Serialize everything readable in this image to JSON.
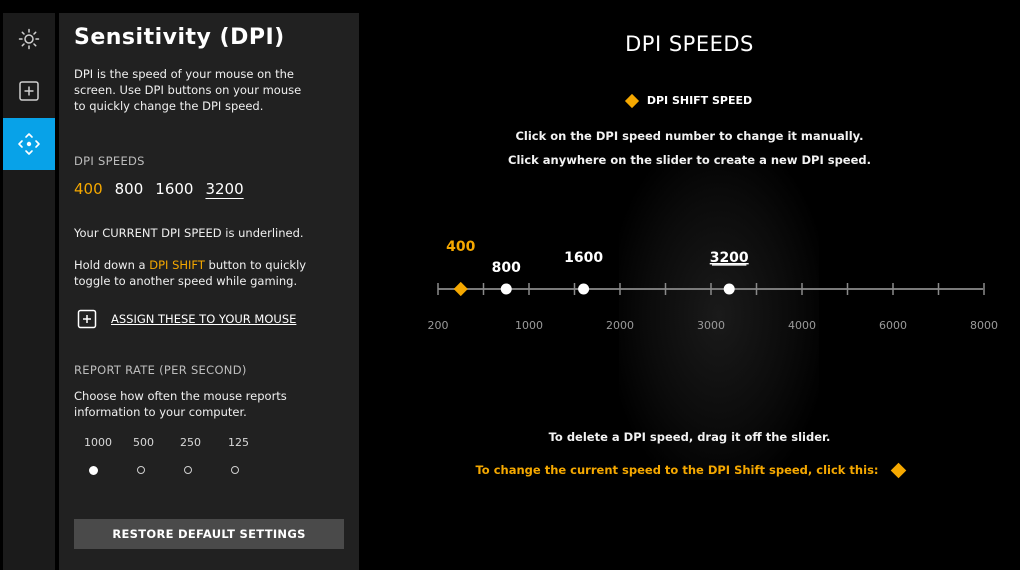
{
  "rail": {
    "items": [
      {
        "icon": "sun-icon"
      },
      {
        "icon": "plus-square-icon"
      },
      {
        "icon": "move-arrows-icon",
        "active": true
      }
    ]
  },
  "panel": {
    "title": "Sensitivity (DPI)",
    "description": "DPI is the speed of your mouse on the screen. Use DPI buttons on your mouse to quickly change the DPI speed.",
    "dpi_speeds_heading": "DPI SPEEDS",
    "dpi_speeds": [
      "400",
      "800",
      "1600",
      "3200"
    ],
    "current_note": "Your CURRENT DPI SPEED is underlined.",
    "shift_note_pre": "Hold down a ",
    "shift_note_accent": "DPI SHIFT",
    "shift_note_post": " button to quickly toggle to another speed while gaming.",
    "assign_label": "ASSIGN THESE TO YOUR MOUSE",
    "report_rate_heading": "REPORT RATE (PER SECOND)",
    "report_rate_description": "Choose how often the mouse reports information to your computer.",
    "report_rates": [
      "1000",
      "500",
      "250",
      "125"
    ],
    "selected_report_rate": "1000",
    "restore_label": "RESTORE DEFAULT SETTINGS"
  },
  "main": {
    "title": "DPI SPEEDS",
    "legend_label": "DPI SHIFT SPEED",
    "instruction_1": "Click on the DPI speed number to change it manually.",
    "instruction_2": "Click anywhere on the slider to create a new DPI speed.",
    "delete_note": "To delete a DPI speed, drag it off the slider.",
    "shift_note": "To change the current speed to the DPI Shift speed, click this:"
  },
  "slider": {
    "scale_labels": [
      "200",
      "1000",
      "2000",
      "3000",
      "4000",
      "6000",
      "8000"
    ],
    "tick_values": [
      200,
      600,
      1000,
      1500,
      2000,
      2500,
      3000,
      3500,
      4000,
      5000,
      6000,
      7000,
      8000
    ],
    "points": [
      {
        "value": 400,
        "label": "400",
        "type": "shift"
      },
      {
        "value": 800,
        "label": "800",
        "type": "normal"
      },
      {
        "value": 1600,
        "label": "1600",
        "type": "normal"
      },
      {
        "value": 3200,
        "label": "3200",
        "type": "current"
      }
    ]
  },
  "colors": {
    "accent": "#f5a800",
    "active_tab": "#08a2e8"
  }
}
